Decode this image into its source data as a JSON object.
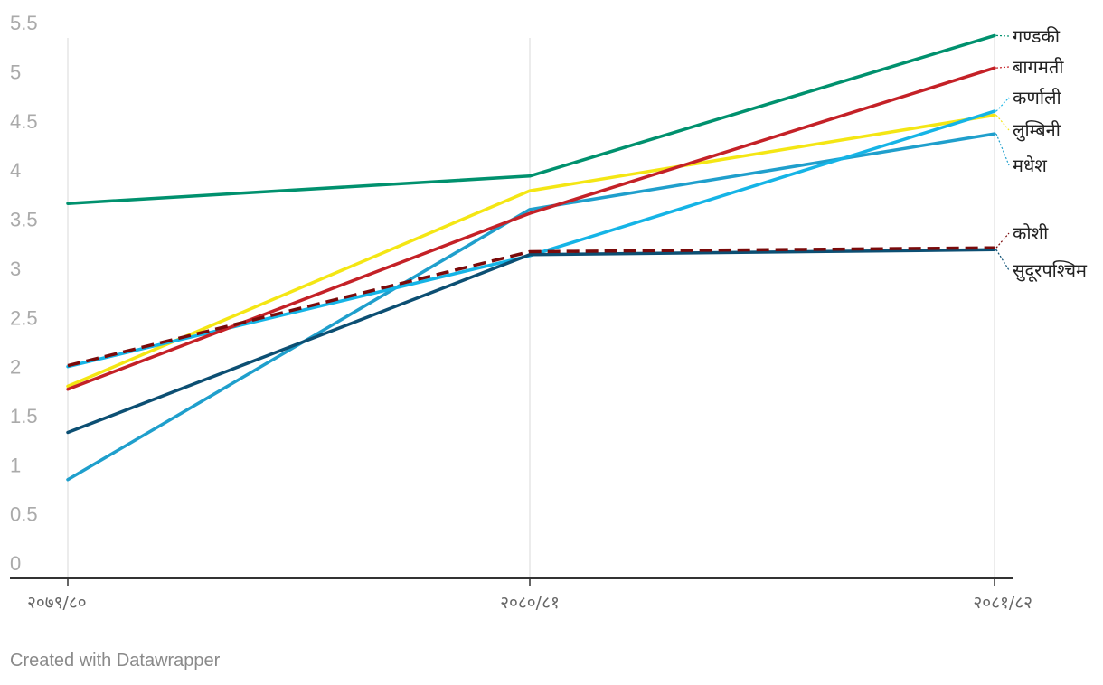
{
  "chart_data": {
    "type": "line",
    "categories": [
      "२०७९/८०",
      "२०८०/८१",
      "२०८१/८२"
    ],
    "ylim": [
      0,
      5.5
    ],
    "yticks": [
      "0",
      "0.5",
      "1",
      "1.5",
      "2",
      "2.5",
      "3",
      "3.5",
      "4",
      "4.5",
      "5",
      "5.5"
    ],
    "grid": true,
    "series": [
      {
        "name": "गण्डकी",
        "values": [
          3.65,
          3.93,
          5.36
        ],
        "color": "#00916e",
        "dashed": false
      },
      {
        "name": "बागमती",
        "values": [
          1.76,
          3.55,
          5.03
        ],
        "color": "#c42127",
        "dashed": false
      },
      {
        "name": "कर्णाली",
        "values": [
          1.99,
          3.12,
          4.59
        ],
        "color": "#15b4e6",
        "dashed": false
      },
      {
        "name": "लुम्बिनी",
        "values": [
          1.79,
          3.78,
          4.55
        ],
        "color": "#f4e614",
        "dashed": false
      },
      {
        "name": "मधेश",
        "values": [
          0.84,
          3.59,
          4.36
        ],
        "color": "#1f9fcc",
        "dashed": false
      },
      {
        "name": "कोशी",
        "values": [
          2.0,
          3.16,
          3.2
        ],
        "color": "#7a0a0a",
        "dashed": true
      },
      {
        "name": "सुदूरपश्चिम",
        "values": [
          1.32,
          3.13,
          3.18
        ],
        "color": "#0c4f73",
        "dashed": false
      }
    ]
  },
  "footer": "Created with Datawrapper"
}
